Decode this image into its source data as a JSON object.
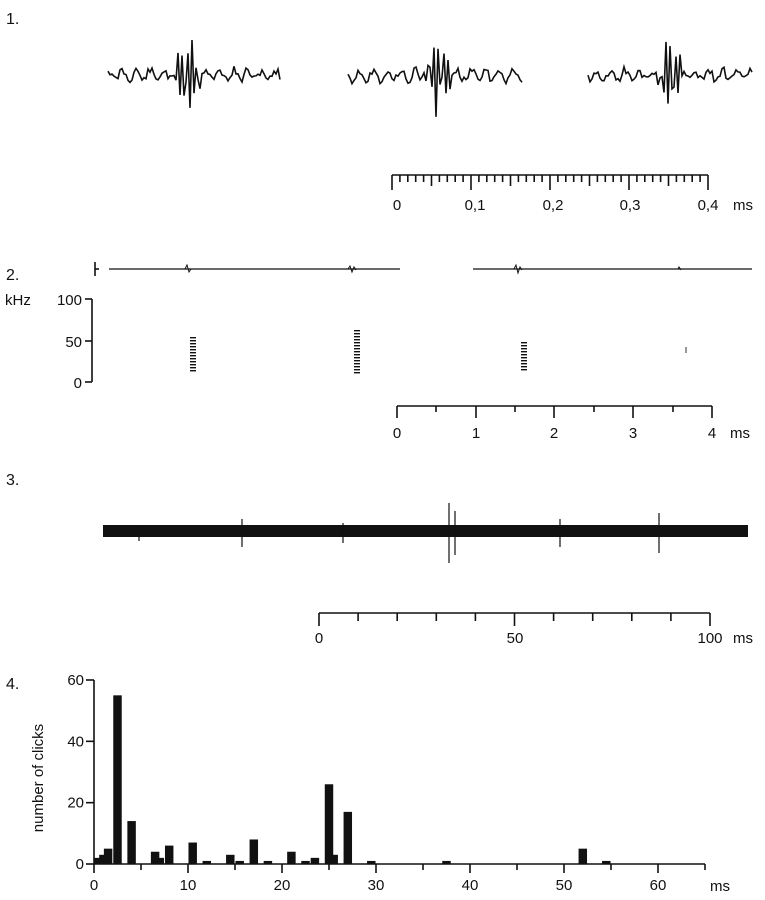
{
  "panels": {
    "p1": {
      "label": "1."
    },
    "p2": {
      "label": "2."
    },
    "p3": {
      "label": "3."
    },
    "p4": {
      "label": "4."
    }
  },
  "chart_data": [
    {
      "type": "line",
      "panel": "1.",
      "description": "three click waveforms",
      "scale_bar": {
        "ticks": [
          "0",
          "0,1",
          "0,2",
          "0,3",
          "0,4"
        ],
        "unit": "ms",
        "minor_divisions_per_major": 10
      }
    },
    {
      "type": "line",
      "panel": "2.",
      "description": "oscillogram with spectrogram below",
      "ylabel": "kHz",
      "yticks": [
        "100",
        "50",
        "0"
      ],
      "ylim": [
        0,
        100
      ],
      "scale_bar": {
        "ticks": [
          "0",
          "1",
          "2",
          "3",
          "4"
        ],
        "unit": "ms"
      }
    },
    {
      "type": "line",
      "panel": "3.",
      "description": "click train oscillogram",
      "scale_bar": {
        "ticks": [
          "0",
          "50",
          "100"
        ],
        "unit": "ms",
        "minor_tick_every": 10
      }
    },
    {
      "type": "bar",
      "panel": "4.",
      "xlabel": "ms",
      "ylabel": "number of clicks",
      "xlim": [
        0,
        65
      ],
      "ylim": [
        0,
        60
      ],
      "xticks": [
        "0",
        "10",
        "20",
        "30",
        "40",
        "50",
        "60"
      ],
      "yticks": [
        "0",
        "20",
        "40",
        "60"
      ],
      "x": [
        0.5,
        1,
        1.5,
        2.5,
        4,
        6.5,
        7,
        8,
        10.5,
        12,
        14.5,
        15.5,
        17,
        18.5,
        21,
        22.5,
        23.5,
        25,
        25.5,
        27,
        29.5,
        37.5,
        52,
        54.5
      ],
      "values": [
        2,
        3,
        5,
        55,
        14,
        4,
        2,
        6,
        7,
        1,
        3,
        1,
        8,
        1,
        4,
        1,
        2,
        26,
        3,
        17,
        1,
        1,
        5,
        1
      ]
    }
  ]
}
